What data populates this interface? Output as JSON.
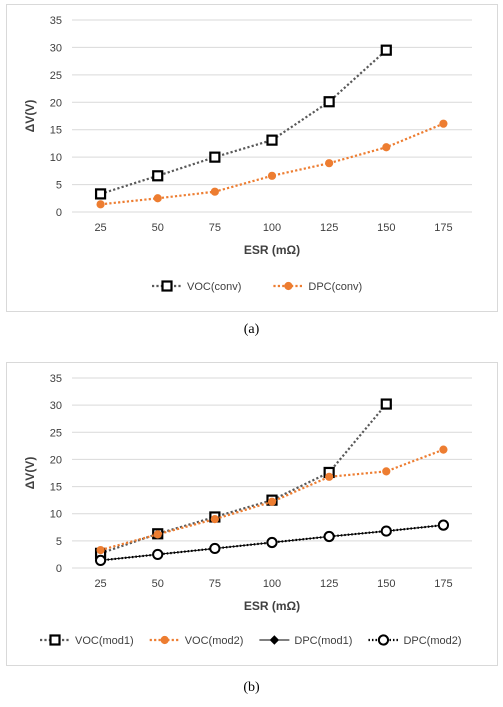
{
  "colors": {
    "gray": "#595959",
    "orange": "#ed7d31",
    "grid": "#d9d9d9",
    "text": "#404040"
  },
  "captions": {
    "a": "(a)",
    "b": "(b)"
  },
  "chart_data": [
    {
      "type": "line",
      "xlabel": "ESR (mΩ)",
      "ylabel": "ΔV(V)",
      "categories": [
        "25",
        "50",
        "75",
        "100",
        "125",
        "150",
        "175"
      ],
      "yticks": [
        0,
        5,
        10,
        15,
        20,
        25,
        30,
        35
      ],
      "ylim": [
        0,
        35
      ],
      "grid": true,
      "legend_position": "bottom",
      "series": [
        {
          "name": "VOC(conv)",
          "color": "#595959",
          "marker": "square",
          "line": "dotted",
          "values": [
            3.3,
            6.6,
            10.0,
            13.1,
            20.1,
            29.5,
            null
          ]
        },
        {
          "name": "DPC(conv)",
          "color": "#ed7d31",
          "marker": "circle-filled",
          "line": "dotted",
          "values": [
            1.4,
            2.5,
            3.7,
            6.6,
            8.9,
            11.8,
            16.1
          ]
        }
      ]
    },
    {
      "type": "line",
      "xlabel": "ESR (mΩ)",
      "ylabel": "ΔV(V)",
      "categories": [
        "25",
        "50",
        "75",
        "100",
        "125",
        "150",
        "175"
      ],
      "yticks": [
        0,
        5,
        10,
        15,
        20,
        25,
        30,
        35
      ],
      "ylim": [
        0,
        35
      ],
      "grid": true,
      "legend_position": "bottom",
      "series": [
        {
          "name": "VOC(mod1)",
          "color": "#595959",
          "marker": "square",
          "line": "dotted",
          "values": [
            2.7,
            6.3,
            9.4,
            12.5,
            17.6,
            30.2,
            null
          ]
        },
        {
          "name": "VOC(mod2)",
          "color": "#ed7d31",
          "marker": "circle-filled",
          "line": "dotted",
          "values": [
            3.3,
            6.2,
            9.0,
            12.2,
            16.8,
            17.8,
            21.8
          ]
        },
        {
          "name": "DPC(mod1)",
          "color": "#000000",
          "marker": "diamond",
          "line": "solid",
          "values": [
            1.4,
            2.5,
            3.6,
            4.7,
            5.8,
            6.8,
            7.9
          ]
        },
        {
          "name": "DPC(mod2)",
          "color": "#000000",
          "marker": "circle-open",
          "line": "dotted",
          "values": [
            1.4,
            2.5,
            3.6,
            4.7,
            5.8,
            6.8,
            7.9
          ]
        }
      ]
    }
  ]
}
